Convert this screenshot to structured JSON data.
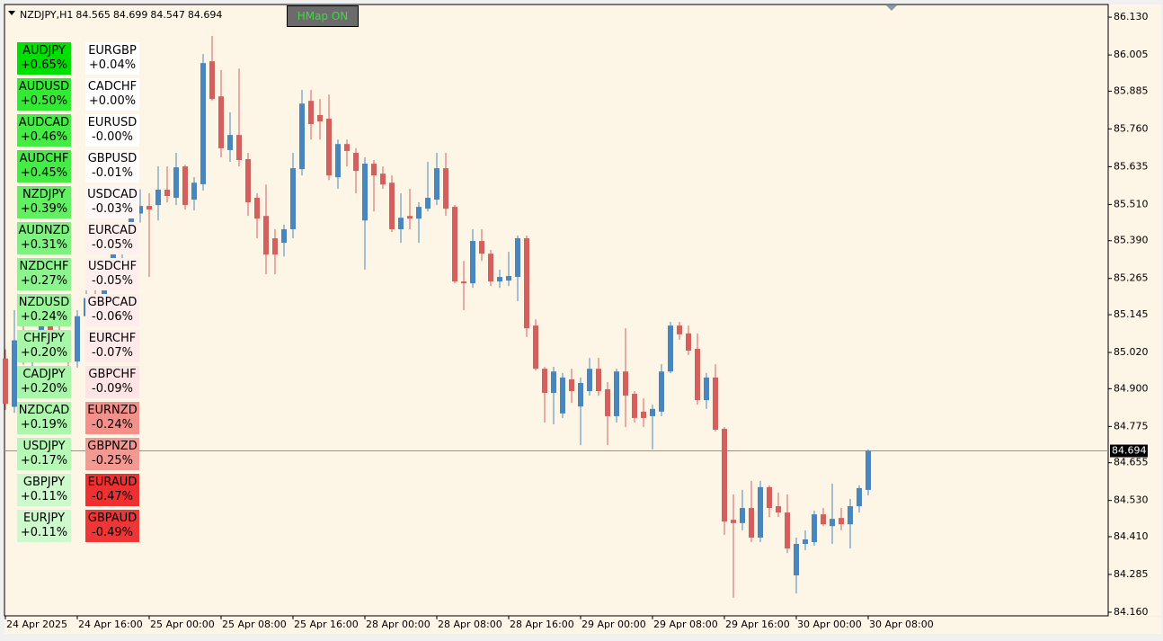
{
  "header": {
    "symbol": "NZDJPY,H1",
    "ohlc": [
      84.565,
      84.699,
      84.547,
      84.694
    ]
  },
  "button": "HMap ON",
  "heatmap": [
    {
      "pairs": [
        {
          "name": "AUDJPY",
          "change": "+0.65%",
          "color": "#00e000"
        },
        {
          "name": "AUDUSD",
          "change": "+0.50%",
          "color": "#33ea33"
        },
        {
          "name": "AUDCAD",
          "change": "+0.46%",
          "color": "#44ec44"
        },
        {
          "name": "AUDCHF",
          "change": "+0.45%",
          "color": "#46ec46"
        },
        {
          "name": "NZDJPY",
          "change": "+0.39%",
          "color": "#62ef62"
        },
        {
          "name": "AUDNZD",
          "change": "+0.31%",
          "color": "#7ef27e"
        },
        {
          "name": "NZDCHF",
          "change": "+0.27%",
          "color": "#8cf48c"
        },
        {
          "name": "NZDUSD",
          "change": "+0.24%",
          "color": "#98f598"
        },
        {
          "name": "CHFJPY",
          "change": "+0.20%",
          "color": "#a8f6a8"
        },
        {
          "name": "CADJPY",
          "change": "+0.20%",
          "color": "#a8f6a8"
        },
        {
          "name": "NZDCAD",
          "change": "+0.19%",
          "color": "#acf7ac"
        },
        {
          "name": "USDJPY",
          "change": "+0.17%",
          "color": "#b6f8b6"
        },
        {
          "name": "GBPJPY",
          "change": "+0.11%",
          "color": "#cdf9cd"
        },
        {
          "name": "EURJPY",
          "change": "+0.11%",
          "color": "#cdf9cd"
        }
      ]
    },
    {
      "pairs": [
        {
          "name": "EURGBP",
          "change": "+0.04%",
          "color": "#ffffff"
        },
        {
          "name": "CADCHF",
          "change": "+0.00%",
          "color": "#ffffff"
        },
        {
          "name": "EURUSD",
          "change": "-0.00%",
          "color": "#ffffff"
        },
        {
          "name": "GBPUSD",
          "change": "-0.01%",
          "color": "#fffcfc"
        },
        {
          "name": "USDCAD",
          "change": "-0.03%",
          "color": "#fff6f6"
        },
        {
          "name": "EURCAD",
          "change": "-0.05%",
          "color": "#fff0f0"
        },
        {
          "name": "USDCHF",
          "change": "-0.05%",
          "color": "#ffeeee"
        },
        {
          "name": "GBPCAD",
          "change": "-0.06%",
          "color": "#ffecec"
        },
        {
          "name": "EURCHF",
          "change": "-0.07%",
          "color": "#ffeaea"
        },
        {
          "name": "GBPCHF",
          "change": "-0.09%",
          "color": "#fde4e4"
        },
        {
          "name": "EURNZD",
          "change": "-0.24%",
          "color": "#f4908a"
        },
        {
          "name": "GBPNZD",
          "change": "-0.25%",
          "color": "#f49892"
        },
        {
          "name": "EURAUD",
          "change": "-0.47%",
          "color": "#ef3030"
        },
        {
          "name": "GBPAUD",
          "change": "-0.49%",
          "color": "#ef3636"
        }
      ]
    }
  ],
  "chart_data": {
    "type": "candlestick",
    "categories": [
      "24 Apr 2025",
      null,
      null,
      null,
      null,
      null,
      null,
      null,
      "24 Apr 16:00",
      null,
      null,
      null,
      null,
      null,
      null,
      null,
      "25 Apr 00:00",
      null,
      null,
      null,
      null,
      null,
      null,
      null,
      "25 Apr 08:00",
      null,
      null,
      null,
      null,
      null,
      null,
      null,
      "25 Apr 16:00",
      null,
      null,
      null,
      null,
      null,
      null,
      null,
      "28 Apr 00:00",
      null,
      null,
      null,
      null,
      null,
      null,
      null,
      "28 Apr 08:00",
      null,
      null,
      null,
      null,
      null,
      null,
      null,
      "28 Apr 16:00",
      null,
      null,
      null,
      null,
      null,
      null,
      null,
      "29 Apr 00:00",
      null,
      null,
      null,
      null,
      null,
      null,
      null,
      "29 Apr 08:00",
      null,
      null,
      null,
      null,
      null,
      null,
      null,
      "29 Apr 16:00",
      null,
      null,
      null,
      null,
      null,
      null,
      null,
      "30 Apr 00:00",
      null,
      null,
      null,
      null,
      null,
      null,
      null,
      "30 Apr 08:00"
    ],
    "open": [
      85.0,
      84.84,
      85.06,
      85.01,
      85.05,
      85.11,
      85.08,
      85.02,
      84.99,
      85.14,
      85.2,
      85.18,
      85.28,
      85.36,
      85.42,
      85.48,
      85.505,
      85.508,
      85.559,
      85.532,
      85.636,
      85.526,
      85.577,
      85.984,
      85.868,
      85.69,
      85.74,
      85.66,
      85.532,
      85.472,
      85.398,
      85.383,
      85.428,
      85.627,
      85.853,
      85.806,
      85.794,
      85.6,
      85.71,
      85.681,
      85.457,
      85.645,
      85.612,
      85.582,
      85.428,
      85.472,
      85.463,
      85.496,
      85.526,
      85.63,
      85.502,
      85.255,
      85.249,
      85.389,
      85.347,
      85.255,
      85.258,
      85.27,
      85.398,
      85.109,
      84.966,
      84.886,
      84.818,
      84.931,
      84.841,
      84.892,
      84.966,
      84.898,
      84.809,
      84.957,
      84.883,
      84.824,
      84.809,
      84.824,
      84.957,
      85.109,
      85.083,
      85.032,
      84.862,
      84.937,
      84.767,
      84.466,
      84.455,
      84.505,
      84.407,
      84.574,
      84.511,
      84.49,
      84.282,
      84.386,
      84.392,
      84.484,
      84.445,
      84.472,
      84.451,
      84.511,
      84.565
    ],
    "high": [
      85.03,
      85.16,
      85.12,
      85.09,
      85.15,
      85.18,
      85.12,
      85.06,
      85.16,
      85.23,
      85.27,
      85.3,
      85.4,
      85.45,
      85.52,
      85.56,
      85.547,
      85.636,
      85.636,
      85.681,
      85.642,
      85.6,
      86.008,
      86.068,
      85.955,
      85.815,
      85.96,
      85.681,
      85.547,
      85.576,
      85.428,
      85.443,
      85.681,
      85.889,
      85.889,
      85.859,
      85.874,
      85.725,
      85.725,
      85.696,
      85.666,
      85.657,
      85.636,
      85.606,
      85.547,
      85.562,
      85.517,
      85.651,
      85.681,
      85.681,
      85.508,
      85.323,
      85.428,
      85.428,
      85.359,
      85.294,
      85.353,
      85.407,
      85.407,
      85.13,
      84.972,
      84.972,
      84.952,
      84.966,
      84.937,
      85.002,
      85.002,
      84.922,
      84.966,
      85.1,
      84.892,
      84.868,
      84.847,
      84.981,
      85.121,
      85.121,
      85.109,
      85.083,
      84.952,
      84.981,
      84.773,
      84.55,
      84.565,
      84.595,
      84.595,
      84.58,
      84.556,
      84.55,
      84.407,
      84.431,
      84.496,
      84.505,
      84.586,
      84.505,
      84.535,
      84.58,
      84.699
    ],
    "low": [
      84.83,
      84.82,
      84.98,
      84.95,
      85.02,
      85.06,
      84.99,
      84.96,
      84.97,
      85.11,
      85.15,
      85.16,
      85.25,
      85.32,
      85.38,
      85.45,
      85.27,
      85.457,
      85.517,
      85.508,
      85.493,
      85.49,
      85.556,
      85.853,
      85.666,
      85.651,
      85.636,
      85.472,
      85.398,
      85.279,
      85.279,
      85.338,
      85.398,
      85.606,
      85.725,
      85.725,
      85.591,
      85.562,
      85.636,
      85.547,
      85.294,
      85.487,
      85.562,
      85.419,
      85.383,
      85.428,
      85.383,
      85.487,
      85.508,
      85.472,
      85.249,
      85.16,
      85.234,
      85.323,
      85.24,
      85.234,
      85.24,
      85.19,
      85.071,
      84.96,
      84.788,
      84.782,
      84.803,
      84.853,
      84.713,
      84.877,
      84.877,
      84.713,
      84.788,
      84.773,
      84.788,
      84.773,
      84.699,
      84.809,
      84.951,
      85.062,
      85.011,
      84.847,
      84.833,
      84.758,
      84.416,
      84.208,
      84.431,
      84.392,
      84.392,
      84.475,
      84.475,
      84.356,
      84.222,
      84.365,
      84.38,
      84.445,
      84.386,
      84.431,
      84.371,
      84.49,
      84.547
    ],
    "close": [
      84.85,
      85.06,
      85.01,
      85.05,
      85.11,
      85.08,
      85.02,
      84.99,
      85.14,
      85.2,
      85.18,
      85.28,
      85.36,
      85.42,
      85.48,
      85.505,
      85.493,
      85.559,
      85.538,
      85.633,
      85.508,
      85.582,
      85.978,
      85.859,
      85.696,
      85.74,
      85.657,
      85.517,
      85.463,
      85.344,
      85.344,
      85.428,
      85.63,
      85.844,
      85.776,
      85.785,
      85.606,
      85.71,
      85.687,
      85.621,
      85.645,
      85.606,
      85.576,
      85.428,
      85.466,
      85.463,
      85.502,
      85.532,
      85.63,
      85.496,
      85.255,
      85.249,
      85.389,
      85.347,
      85.255,
      85.27,
      85.273,
      85.398,
      85.1,
      84.966,
      84.886,
      84.957,
      84.937,
      84.892,
      84.919,
      84.966,
      84.892,
      84.809,
      84.957,
      84.877,
      84.803,
      84.803,
      84.833,
      84.957,
      85.109,
      85.08,
      85.026,
      84.862,
      84.937,
      84.764,
      84.46,
      84.455,
      84.505,
      84.407,
      84.574,
      84.505,
      84.49,
      84.371,
      84.386,
      84.401,
      84.484,
      84.451,
      84.469,
      84.451,
      84.511,
      84.571,
      84.694
    ],
    "up_color": "#4a86be",
    "down_color": "#d4605e",
    "ylim": [
      86.172,
      84.148
    ],
    "yticks": [
      {
        "value": 86.13,
        "label": "86.130"
      },
      86.005,
      85.885,
      {
        "value": 85.76,
        "label": "85.760"
      },
      85.635,
      {
        "value": 85.51,
        "label": "85.510"
      },
      {
        "value": 85.39,
        "label": "85.390"
      },
      85.265,
      85.145,
      {
        "value": 85.02,
        "label": "85.020"
      },
      {
        "value": 84.9,
        "label": "84.900"
      },
      84.775,
      84.655,
      {
        "value": 84.53,
        "label": "84.530"
      },
      {
        "value": 84.41,
        "label": "84.410"
      },
      84.285,
      {
        "value": 84.16,
        "label": "84.160"
      }
    ],
    "current_price": 84.694
  }
}
